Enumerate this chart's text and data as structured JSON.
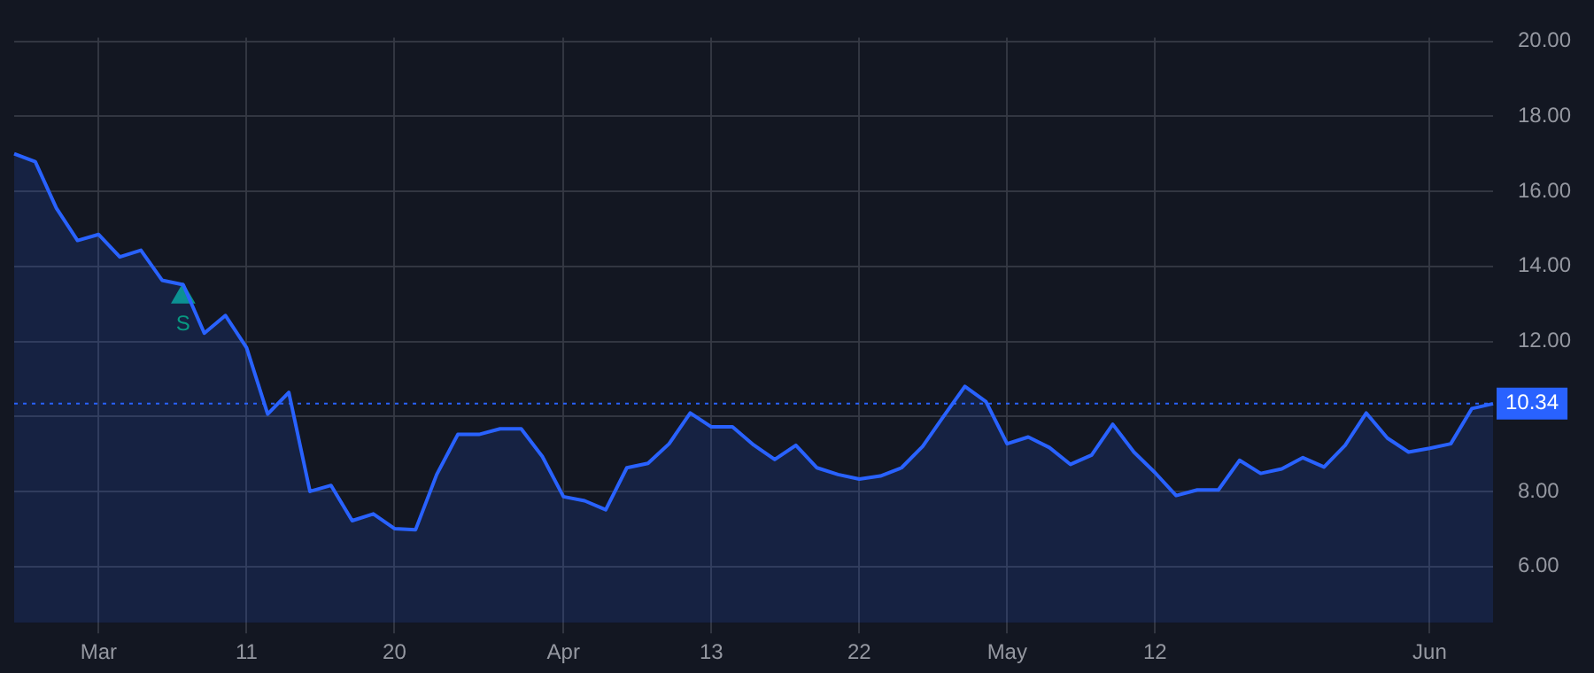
{
  "chart_data": {
    "type": "area",
    "categories": [
      null,
      null,
      null,
      null,
      "Mar",
      null,
      null,
      null,
      null,
      null,
      null,
      "11",
      null,
      null,
      null,
      null,
      null,
      null,
      "20",
      null,
      null,
      null,
      null,
      null,
      null,
      null,
      "Apr",
      null,
      null,
      null,
      null,
      null,
      null,
      "13",
      null,
      null,
      null,
      null,
      null,
      null,
      "22",
      null,
      null,
      null,
      null,
      null,
      null,
      "May",
      null,
      null,
      null,
      null,
      null,
      null,
      "12",
      null,
      null,
      null,
      null,
      null,
      null,
      null,
      null,
      null,
      null,
      null,
      null,
      "Jun",
      null,
      null,
      null
    ],
    "series": [
      {
        "color": "#2962ff",
        "values": [
          17.0,
          16.79,
          15.55,
          14.69,
          14.85,
          14.25,
          14.43,
          13.63,
          13.51,
          12.22,
          12.69,
          11.83,
          10.06,
          10.64,
          8.0,
          8.16,
          7.22,
          7.4,
          7.01,
          6.98,
          8.45,
          9.52,
          9.52,
          9.67,
          9.67,
          8.93,
          7.86,
          7.75,
          7.51,
          8.63,
          8.75,
          9.27,
          10.09,
          9.72,
          9.72,
          9.24,
          8.85,
          9.23,
          8.63,
          8.45,
          8.33,
          8.41,
          8.63,
          9.2,
          10.01,
          10.8,
          10.39,
          9.27,
          9.45,
          9.17,
          8.72,
          8.97,
          9.79,
          9.05,
          8.5,
          7.89,
          8.04,
          8.04,
          8.83,
          8.48,
          8.6,
          8.9,
          8.65,
          9.23,
          10.09,
          9.42,
          9.05,
          9.15,
          9.27,
          10.21,
          10.34
        ]
      },
      {
        "type": "scatter",
        "color": "#089981",
        "marker": "triangle",
        "values": [
          null,
          null,
          null,
          null,
          null,
          null,
          null,
          null,
          13.2,
          null,
          null,
          null,
          null,
          null,
          null,
          null,
          null,
          null,
          null,
          null,
          null,
          null,
          null,
          null,
          null,
          null,
          null,
          null,
          null,
          null,
          null,
          null,
          null,
          null,
          null,
          null,
          null,
          null,
          null,
          null,
          null,
          null,
          null,
          null,
          null,
          null,
          null,
          null,
          null,
          null,
          null,
          null,
          null,
          null,
          null,
          null,
          null,
          null,
          null,
          null,
          null,
          null,
          null,
          null,
          null,
          null,
          null,
          null,
          null,
          null,
          null
        ]
      }
    ],
    "annotations": [
      "S"
    ],
    "ylim": [
      4.5,
      20.1
    ],
    "yticks": [
      {
        "value": 6,
        "label": "6.00"
      },
      {
        "value": 8,
        "label": "8.00"
      },
      {
        "value": 10,
        "label": null
      },
      {
        "value": 12,
        "label": "12.00"
      },
      {
        "value": 14,
        "label": "14.00"
      },
      {
        "value": 16,
        "label": "16.00"
      },
      {
        "value": 18,
        "label": "18.00"
      },
      {
        "value": 20,
        "label": "20.00"
      }
    ],
    "ref_lines": [
      {
        "axis": "y",
        "value": 10.34,
        "label": "10.34",
        "color": "#2962ff",
        "line_style": "dotted"
      }
    ],
    "grid": true,
    "legend": false,
    "marker": "none",
    "line_style": "solid"
  }
}
